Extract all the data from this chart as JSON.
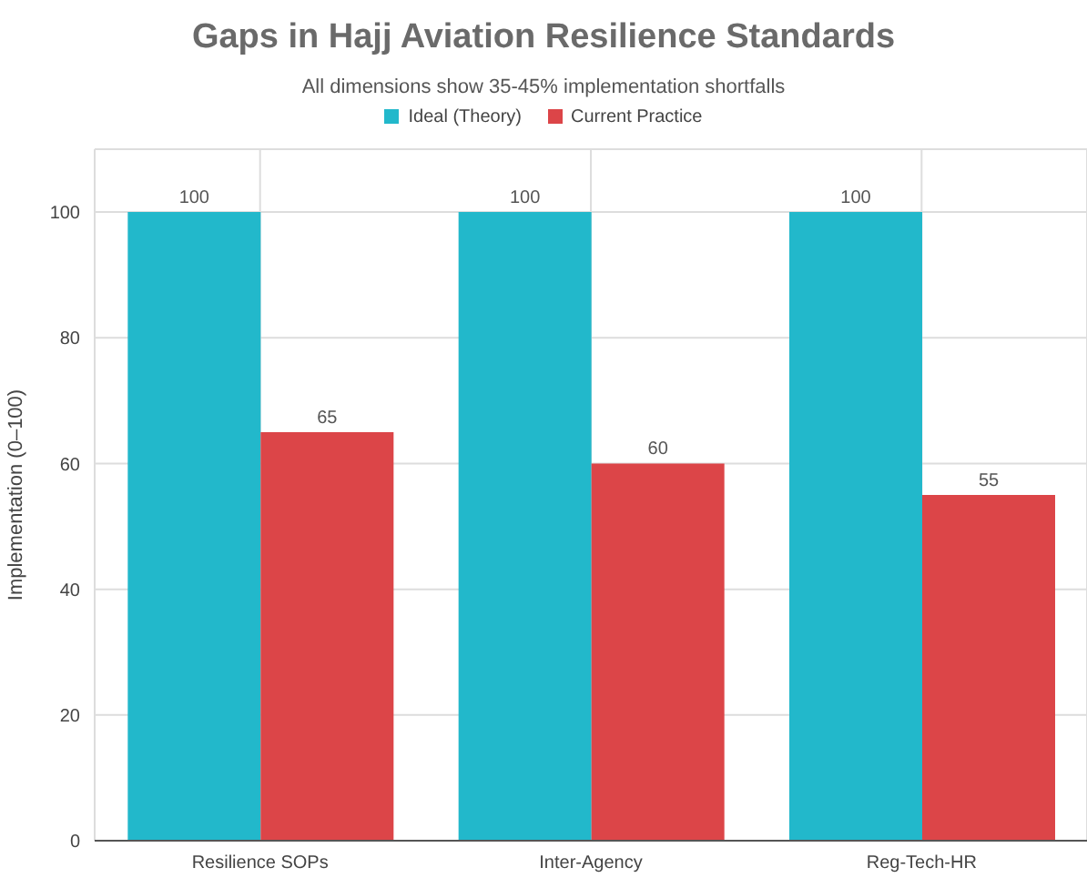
{
  "chart_data": {
    "type": "bar",
    "title": "Gaps in Hajj Aviation Resilience Standards",
    "subtitle": "All dimensions show 35-45% implementation shortfalls",
    "ylabel": "Implementation (0–100)",
    "categories": [
      "Resilience SOPs",
      "Inter-Agency",
      "Reg-Tech-HR"
    ],
    "series": [
      {
        "name": "Ideal (Theory)",
        "color": "#22b8cb",
        "values": [
          100,
          100,
          100
        ]
      },
      {
        "name": "Current Practice",
        "color": "#dc4548",
        "values": [
          65,
          60,
          55
        ]
      }
    ],
    "ylim": [
      0,
      110
    ],
    "yticks": [
      0,
      20,
      40,
      60,
      80,
      100
    ],
    "grid": true,
    "legend": "top",
    "data_labels": true
  }
}
